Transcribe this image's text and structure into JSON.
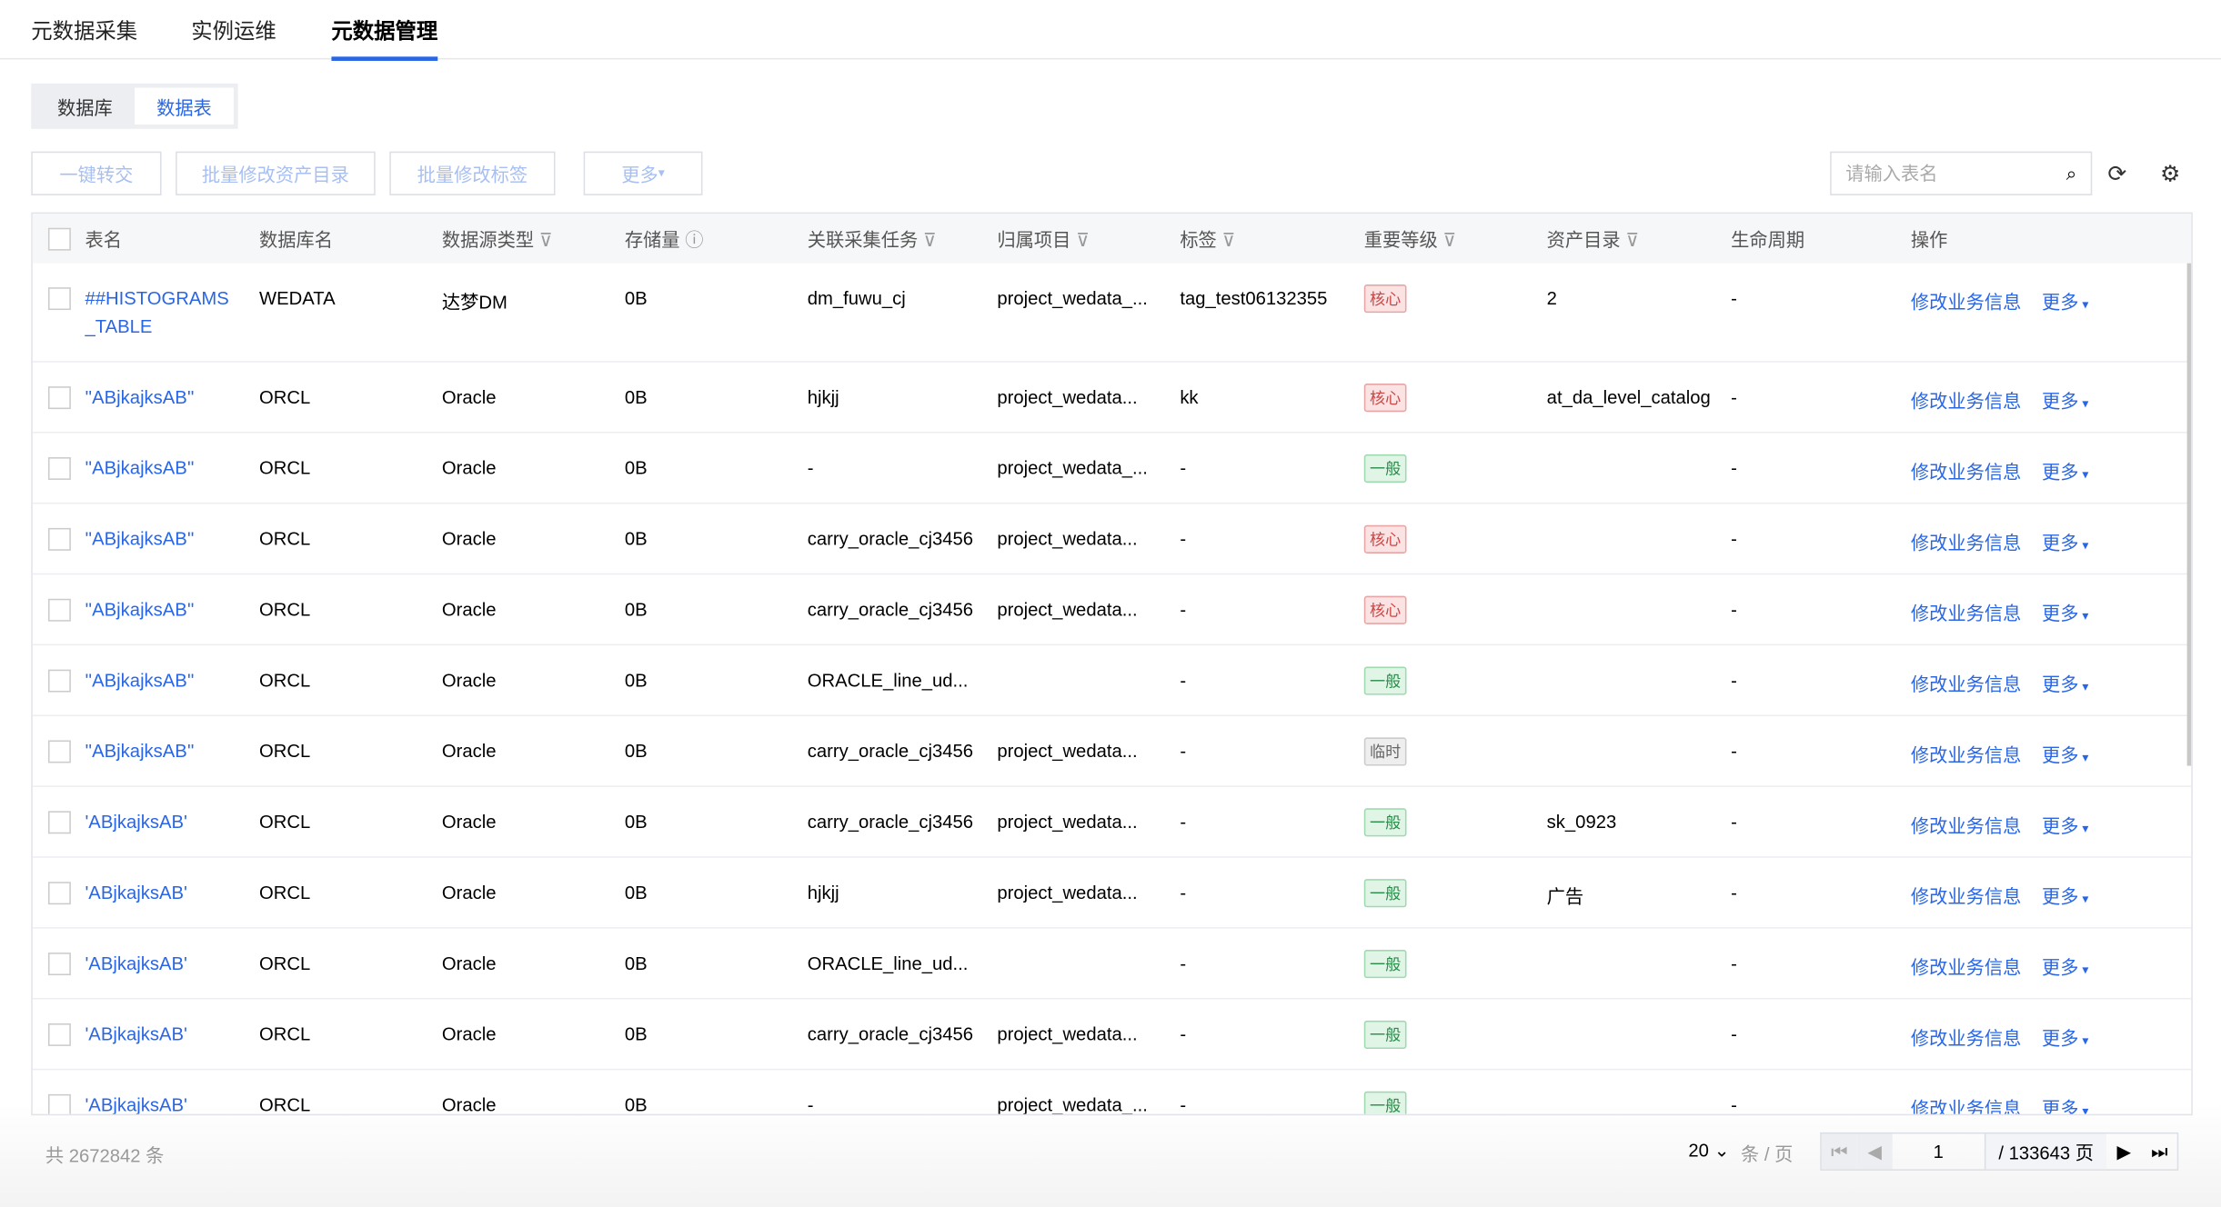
{
  "top_tabs": [
    "元数据采集",
    "实例运维",
    "元数据管理"
  ],
  "active_tab": 2,
  "segment": [
    "数据库",
    "数据表"
  ],
  "toolbar": {
    "transfer": "一键转交",
    "batch_catalog": "批量修改资产目录",
    "batch_tag": "批量修改标签",
    "more": "更多",
    "search_placeholder": "请输入表名"
  },
  "columns": [
    "表名",
    "数据库名",
    "数据源类型",
    "存储量",
    "关联采集任务",
    "归属项目",
    "标签",
    "重要等级",
    "资产目录",
    "生命周期",
    "操作"
  ],
  "rows": [
    {
      "name": "##HISTOGRAMS_TABLE",
      "db": "WEDATA",
      "type": "达梦DM",
      "size": "0B",
      "task": "dm_fuwu_cj",
      "project": "project_wedata_...",
      "tag": "tag_test06132355",
      "level": "核心",
      "lv": "core",
      "catalog": "2",
      "life": "-"
    },
    {
      "name": "''ABjkajksAB''",
      "db": "ORCL",
      "type": "Oracle",
      "size": "0B",
      "task": "hjkjj",
      "project": "project_wedata...",
      "tag": "kk",
      "level": "核心",
      "lv": "core",
      "catalog": "at_da_level_catalog",
      "life": "-"
    },
    {
      "name": "''ABjkajksAB''",
      "db": "ORCL",
      "type": "Oracle",
      "size": "0B",
      "task": "-",
      "project": "project_wedata_...",
      "tag": "-",
      "level": "一般",
      "lv": "norm",
      "catalog": "",
      "life": "-"
    },
    {
      "name": "''ABjkajksAB''",
      "db": "ORCL",
      "type": "Oracle",
      "size": "0B",
      "task": "carry_oracle_cj3456",
      "project": "project_wedata...",
      "tag": "-",
      "level": "核心",
      "lv": "core",
      "catalog": "",
      "life": "-"
    },
    {
      "name": "''ABjkajksAB''",
      "db": "ORCL",
      "type": "Oracle",
      "size": "0B",
      "task": "carry_oracle_cj3456",
      "project": "project_wedata...",
      "tag": "-",
      "level": "核心",
      "lv": "core",
      "catalog": "",
      "life": "-"
    },
    {
      "name": "''ABjkajksAB''",
      "db": "ORCL",
      "type": "Oracle",
      "size": "0B",
      "task": "ORACLE_line_ud...",
      "project": "",
      "tag": "-",
      "level": "一般",
      "lv": "norm",
      "catalog": "",
      "life": "-"
    },
    {
      "name": "''ABjkajksAB''",
      "db": "ORCL",
      "type": "Oracle",
      "size": "0B",
      "task": "carry_oracle_cj3456",
      "project": "project_wedata...",
      "tag": "-",
      "level": "临时",
      "lv": "temp",
      "catalog": "",
      "life": "-"
    },
    {
      "name": "'ABjkajksAB'",
      "db": "ORCL",
      "type": "Oracle",
      "size": "0B",
      "task": "carry_oracle_cj3456",
      "project": "project_wedata...",
      "tag": "-",
      "level": "一般",
      "lv": "norm",
      "catalog": "sk_0923",
      "life": "-"
    },
    {
      "name": "'ABjkajksAB'",
      "db": "ORCL",
      "type": "Oracle",
      "size": "0B",
      "task": "hjkjj",
      "project": "project_wedata...",
      "tag": "-",
      "level": "一般",
      "lv": "norm",
      "catalog": "广告",
      "life": "-"
    },
    {
      "name": "'ABjkajksAB'",
      "db": "ORCL",
      "type": "Oracle",
      "size": "0B",
      "task": "ORACLE_line_ud...",
      "project": "",
      "tag": "-",
      "level": "一般",
      "lv": "norm",
      "catalog": "",
      "life": "-"
    },
    {
      "name": "'ABjkajksAB'",
      "db": "ORCL",
      "type": "Oracle",
      "size": "0B",
      "task": "carry_oracle_cj3456",
      "project": "project_wedata...",
      "tag": "-",
      "level": "一般",
      "lv": "norm",
      "catalog": "",
      "life": "-"
    },
    {
      "name": "'ABjkajksAB'",
      "db": "ORCL",
      "type": "Oracle",
      "size": "0B",
      "task": "-",
      "project": "project_wedata_...",
      "tag": "-",
      "level": "一般",
      "lv": "norm",
      "catalog": "",
      "life": "-"
    }
  ],
  "actions": {
    "edit": "修改业务信息",
    "more": "更多"
  },
  "footer": {
    "total": "共 2672842 条",
    "page_size": "20",
    "per_page": "条 / 页",
    "page": "1",
    "pages": "/ 133643 页"
  }
}
